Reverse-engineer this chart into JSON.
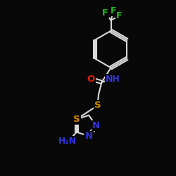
{
  "background_color": "#080808",
  "bond_color": "#d8d8d8",
  "atom_colors": {
    "F": "#22bb22",
    "O": "#dd2200",
    "N": "#3333dd",
    "S": "#cc8800",
    "H": "#d8d8d8",
    "C": "#d8d8d8"
  }
}
